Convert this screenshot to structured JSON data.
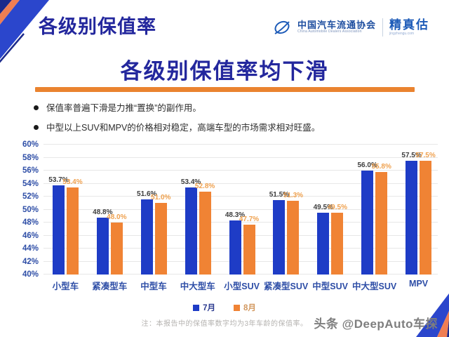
{
  "header": {
    "page_title": "各级别保值率",
    "org_name": "中国汽车流通协会",
    "org_name_en": "China Automobile Dealers Association",
    "brand_name": "精真估",
    "brand_domain": "jingzhengu.com"
  },
  "slide": {
    "title": "各级别保值率均下滑",
    "bullets": [
      "保值率普遍下滑是力推“置换”的副作用。",
      "中型以上SUV和MPV的价格相对稳定，高端车型的市场需求相对旺盛。"
    ],
    "note": "注：本报告中的保值率数字均为3年车龄的保值率。",
    "watermark": "头条 @DeepAuto车探"
  },
  "colors": {
    "title_navy": "#23279d",
    "accent_orange": "#ea832f",
    "bar_blue": "#1e3cc6",
    "bar_orange": "#f08334",
    "axis_blue": "#2d4da6",
    "corner_navy": "#1c2a8c",
    "corner_salmon": "#f07e53",
    "corner_blue": "#2b46cc"
  },
  "chart_data": {
    "type": "bar",
    "title": "各级别保值率均下滑",
    "categories": [
      "小型车",
      "紧凑型车",
      "中型车",
      "中大型车",
      "小型SUV",
      "紧凑型SUV",
      "中型SUV",
      "中大型SUV",
      "MPV"
    ],
    "series": [
      {
        "name": "7月",
        "color": "#1e3cc6",
        "label_color": "#3d3d3d",
        "legend_text_color": "#2b3a8f",
        "values": [
          53.7,
          48.8,
          51.6,
          53.4,
          48.3,
          51.5,
          49.5,
          56.0,
          57.5
        ]
      },
      {
        "name": "8月",
        "color": "#f08334",
        "label_color": "#efa14f",
        "legend_text_color": "#d2975e",
        "values": [
          53.4,
          48.0,
          51.0,
          52.8,
          47.7,
          51.3,
          49.5,
          55.8,
          57.5
        ]
      }
    ],
    "xlabel": "",
    "ylabel": "",
    "ylim": [
      40,
      60
    ],
    "ytick_step": 2,
    "ytick_suffix": "%",
    "grid": true,
    "legend_position": "bottom",
    "value_labels": true
  }
}
